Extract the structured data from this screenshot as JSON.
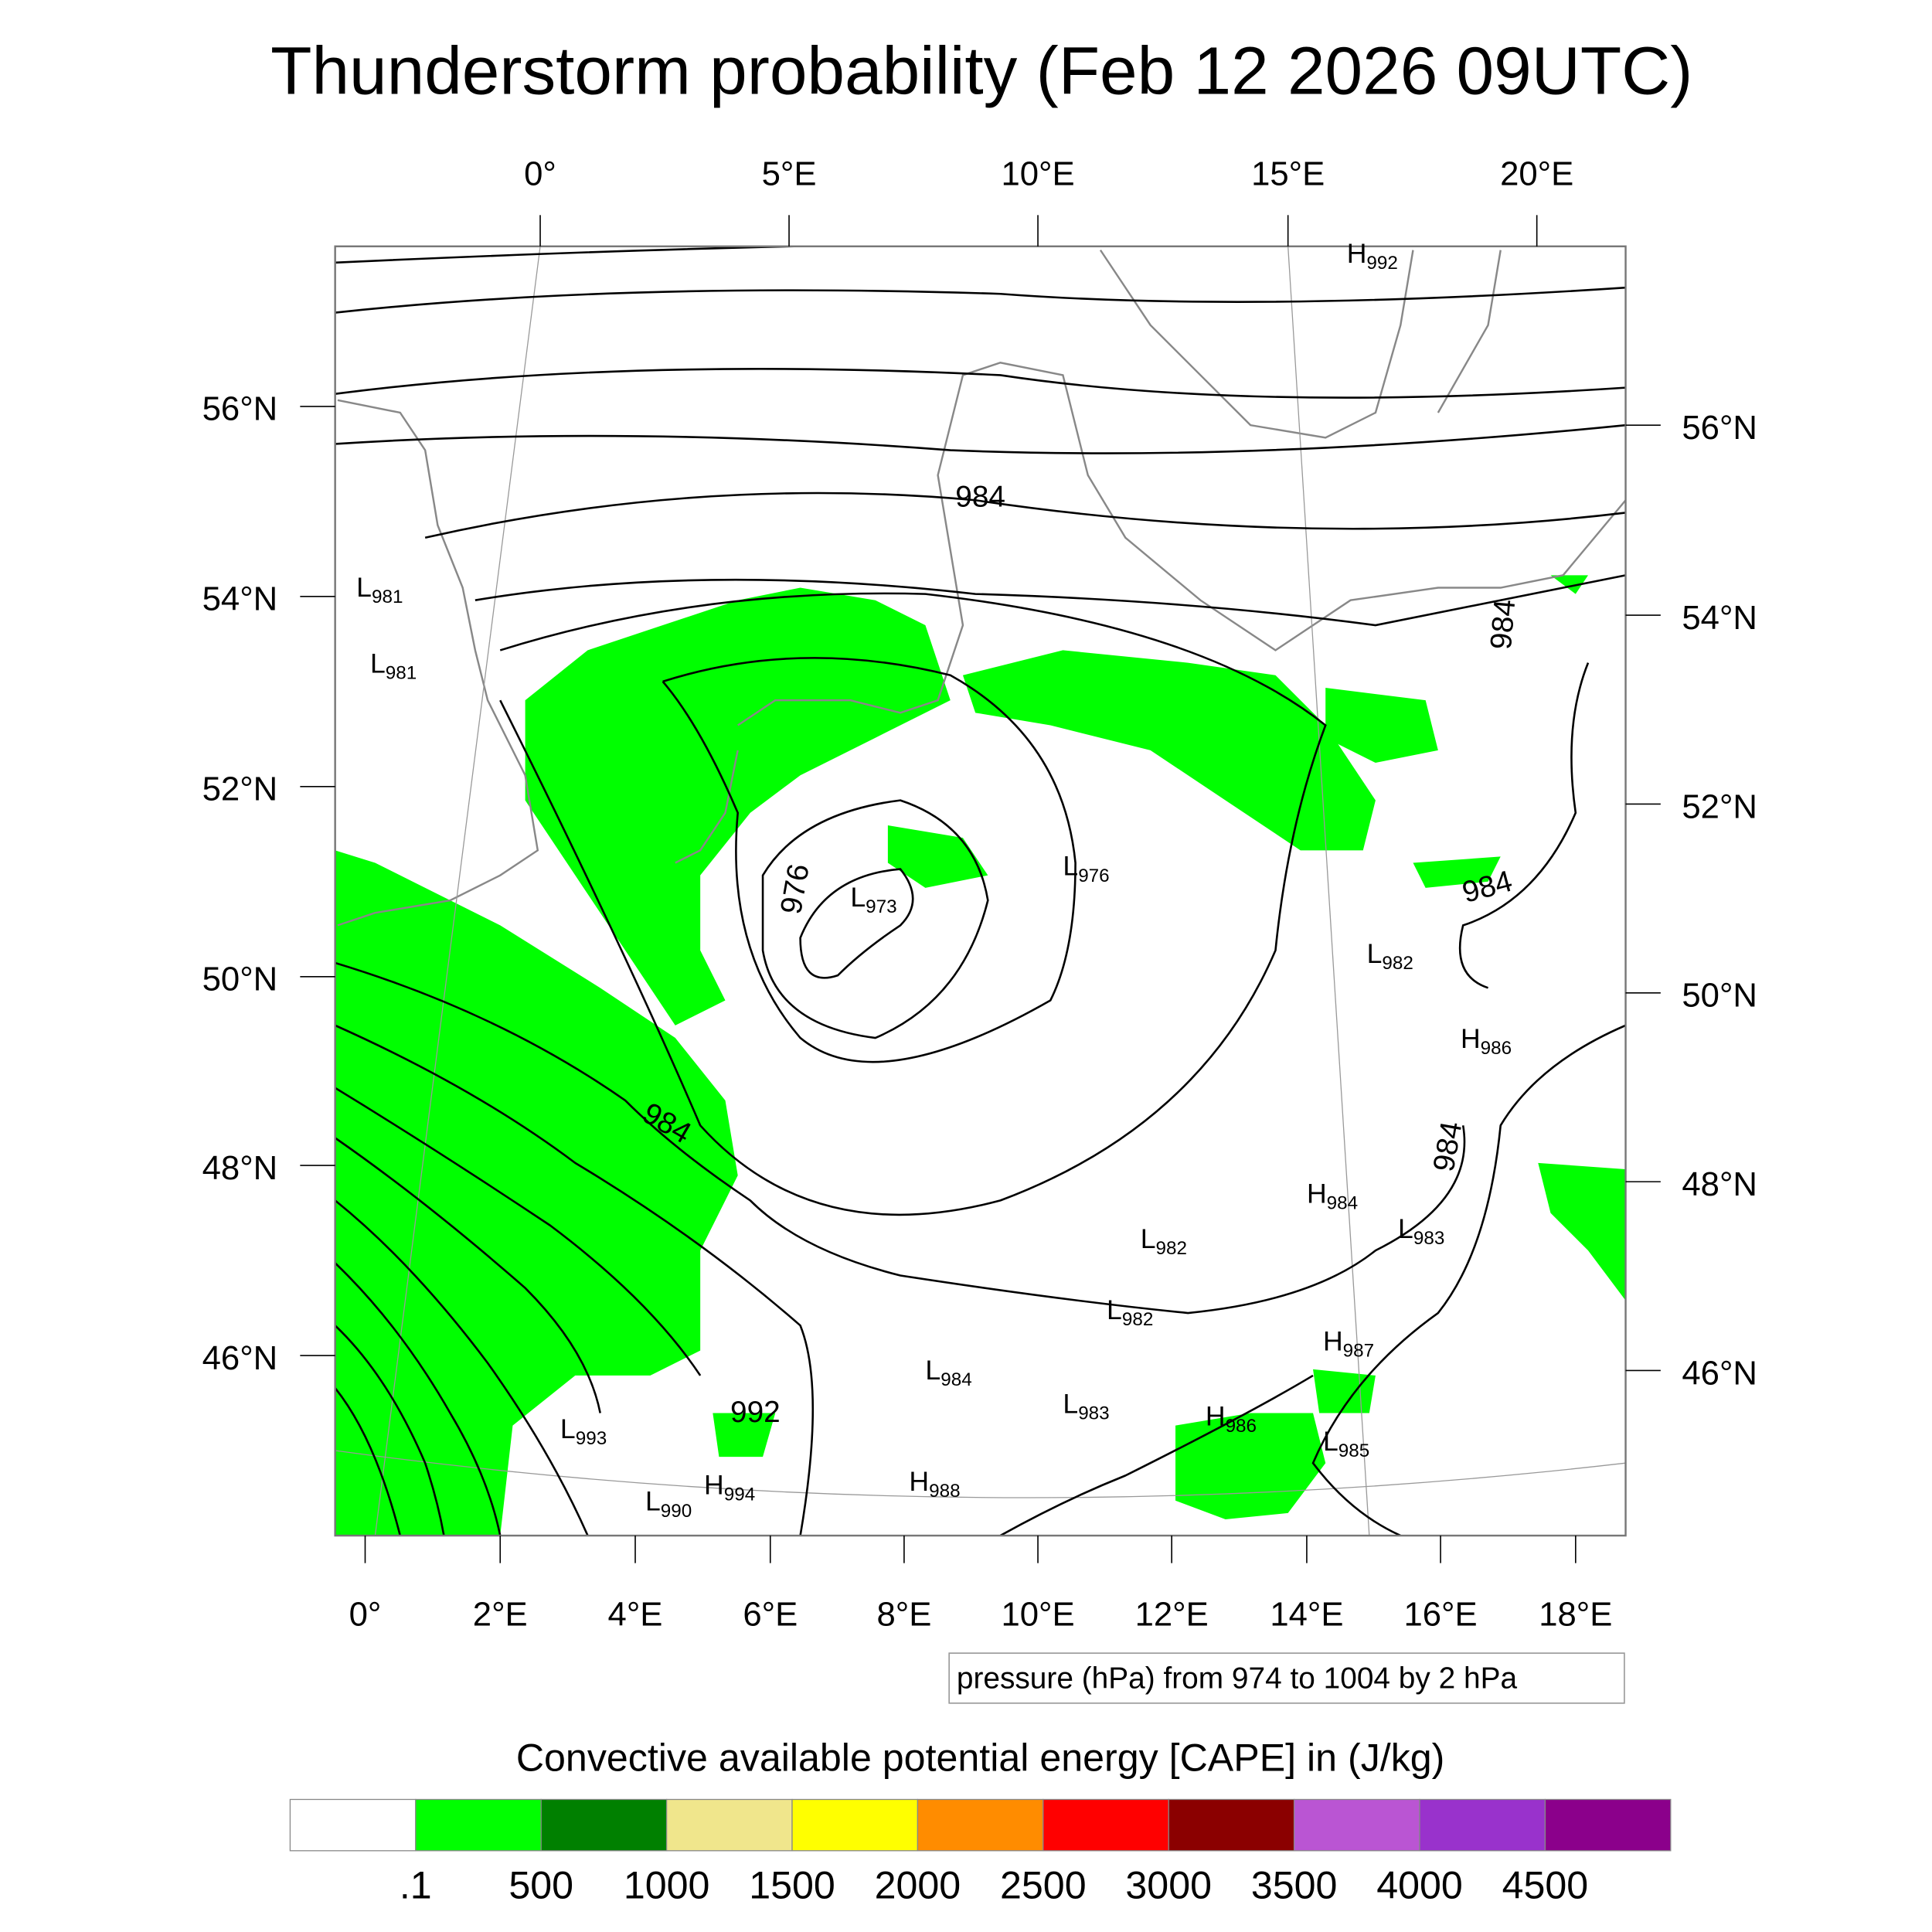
{
  "title": "Thunderstorm probability (Feb 12 2026 09UTC)",
  "top_lon_labels": [
    "0°",
    "5°E",
    "10°E",
    "15°E",
    "20°E"
  ],
  "bottom_lon_labels": [
    "0°",
    "2°E",
    "4°E",
    "6°E",
    "8°E",
    "10°E",
    "12°E",
    "14°E",
    "16°E",
    "18°E"
  ],
  "left_lat_labels": [
    "56°N",
    "54°N",
    "52°N",
    "50°N",
    "48°N",
    "46°N"
  ],
  "right_lat_labels": [
    "56°N",
    "54°N",
    "52°N",
    "50°N",
    "48°N",
    "46°N"
  ],
  "pressure_centers": [
    {
      "type": "H",
      "value": "992"
    },
    {
      "type": "L",
      "value": "981"
    },
    {
      "type": "L",
      "value": "981"
    },
    {
      "type": "L",
      "value": "976"
    },
    {
      "type": "L",
      "value": "973"
    },
    {
      "type": "L",
      "value": "982"
    },
    {
      "type": "H",
      "value": "986"
    },
    {
      "type": "H",
      "value": "984"
    },
    {
      "type": "L",
      "value": "983"
    },
    {
      "type": "L",
      "value": "982"
    },
    {
      "type": "L",
      "value": "982"
    },
    {
      "type": "H",
      "value": "987"
    },
    {
      "type": "L",
      "value": "984"
    },
    {
      "type": "L",
      "value": "983"
    },
    {
      "type": "H",
      "value": "986"
    },
    {
      "type": "L",
      "value": "985"
    },
    {
      "type": "L",
      "value": "993"
    },
    {
      "type": "H",
      "value": "994"
    },
    {
      "type": "L",
      "value": "990"
    },
    {
      "type": "H",
      "value": "988"
    }
  ],
  "contour_labels": [
    "984",
    "976",
    "984",
    "984",
    "984",
    "984",
    "992"
  ],
  "contour_legend": "pressure (hPa) from 974 to 1004 by 2 hPa",
  "colorbar": {
    "title": "Convective available potential energy [CAPE] in (J/kg)",
    "colors": [
      "#ffffff",
      "#00ff00",
      "#008000",
      "#f0e68c",
      "#ffff00",
      "#ff8c00",
      "#ff0000",
      "#8b0000",
      "#ba55d3",
      "#9932cc",
      "#8b008b"
    ],
    "labels": [
      ".1",
      "500",
      "1000",
      "1500",
      "2000",
      "2500",
      "3000",
      "3500",
      "4000",
      "4500"
    ]
  },
  "colors": {
    "cape_green": "#00ff00",
    "coastline": "#888888",
    "isobar": "#000000"
  }
}
